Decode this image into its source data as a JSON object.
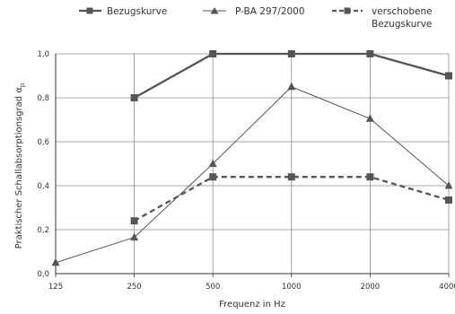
{
  "chart_data": {
    "type": "line",
    "title": "",
    "xlabel": "Frequenz in Hz",
    "ylabel": "Praktischer Schallabsorptionsgrad α",
    "ylabel_subscript": "p",
    "x_categories": [
      "125",
      "250",
      "500",
      "1000",
      "2000",
      "4000"
    ],
    "y_ticks": [
      "0,0",
      "0,2",
      "0,4",
      "0,6",
      "0,8",
      "1,0"
    ],
    "ylim": [
      0,
      1.0
    ],
    "grid": true,
    "legend_position": "top",
    "series": [
      {
        "name": "Bezugskurve",
        "marker": "square",
        "line_style": "solid",
        "line_weight": "bold",
        "values": [
          null,
          0.8,
          1.0,
          1.0,
          1.0,
          0.9
        ]
      },
      {
        "name": "P-BA 297/2000",
        "marker": "triangle",
        "line_style": "solid",
        "line_weight": "thin",
        "values": [
          0.05,
          0.165,
          0.5,
          0.85,
          0.705,
          0.4
        ]
      },
      {
        "name_line1": "verschobene",
        "name_line2": "Bezugskurve",
        "marker": "square",
        "line_style": "dashed",
        "line_weight": "bold",
        "values": [
          null,
          0.24,
          0.44,
          0.44,
          0.44,
          0.335
        ]
      }
    ],
    "colors": {
      "line": "#555555",
      "grid": "#8a8a8a",
      "axis": "#333333",
      "text": "#333333"
    }
  }
}
